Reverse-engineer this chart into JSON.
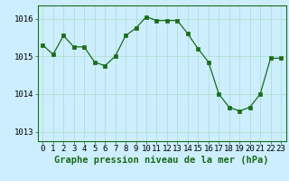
{
  "x": [
    0,
    1,
    2,
    3,
    4,
    5,
    6,
    7,
    8,
    9,
    10,
    11,
    12,
    13,
    14,
    15,
    16,
    17,
    18,
    19,
    20,
    21,
    22,
    23
  ],
  "y": [
    1015.3,
    1015.05,
    1015.55,
    1015.25,
    1015.25,
    1014.85,
    1014.75,
    1015.0,
    1015.55,
    1015.75,
    1016.05,
    1015.95,
    1015.95,
    1015.95,
    1015.6,
    1015.2,
    1014.85,
    1014.0,
    1013.65,
    1013.55,
    1013.65,
    1014.0,
    1014.95,
    1014.95
  ],
  "line_color": "#1a6b1a",
  "marker": "s",
  "marker_size": 2.5,
  "bg_color": "#cceeff",
  "grid_color": "#aaddcc",
  "xlabel": "Graphe pression niveau de la mer (hPa)",
  "xlabel_fontsize": 7.5,
  "tick_fontsize": 6.5,
  "ylim": [
    1012.75,
    1016.35
  ],
  "yticks": [
    1013,
    1014,
    1015,
    1016
  ],
  "xticks": [
    0,
    1,
    2,
    3,
    4,
    5,
    6,
    7,
    8,
    9,
    10,
    11,
    12,
    13,
    14,
    15,
    16,
    17,
    18,
    19,
    20,
    21,
    22,
    23
  ]
}
